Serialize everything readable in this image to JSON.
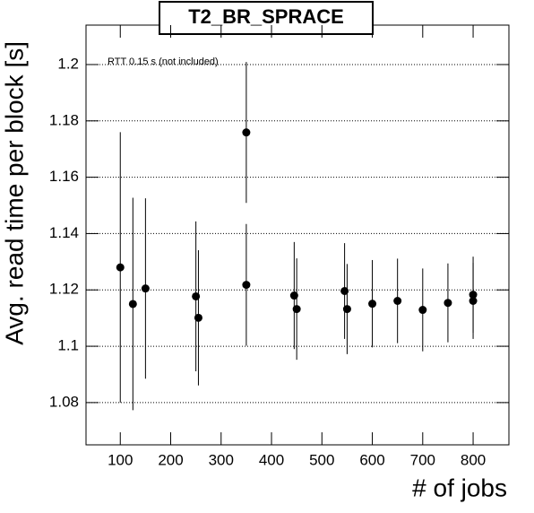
{
  "chart_data": {
    "type": "scatter",
    "title": "T2_BR_SPRACE",
    "annotation": "RTT 0.15 s (not included)",
    "x_label": "# of jobs",
    "y_label": "Avg. read time per block [s]",
    "color": "#000000",
    "grid": "y",
    "xlim": [
      32,
      871
    ],
    "ylim": [
      1.065,
      1.214
    ],
    "xticks": [
      100,
      200,
      300,
      400,
      500,
      600,
      700,
      800
    ],
    "yticks": [
      1.08,
      1.1,
      1.12,
      1.14,
      1.16,
      1.18,
      1.2
    ],
    "x": [
      100,
      125,
      150,
      250,
      255,
      350,
      350,
      445,
      450,
      545,
      550,
      600,
      650,
      700,
      750,
      800,
      800
    ],
    "values": [
      1.128,
      1.115,
      1.1205,
      1.1177,
      1.1101,
      1.1759,
      1.1218,
      1.118,
      1.1132,
      1.1196,
      1.1132,
      1.1151,
      1.1161,
      1.1129,
      1.1154,
      1.1183,
      1.1161
    ],
    "errors": [
      0.048,
      0.0377,
      0.032,
      0.0266,
      0.024,
      0.025,
      0.0216,
      0.019,
      0.018,
      0.017,
      0.016,
      0.0155,
      0.015,
      0.0147,
      0.014,
      0.0135,
      0.0135
    ]
  }
}
